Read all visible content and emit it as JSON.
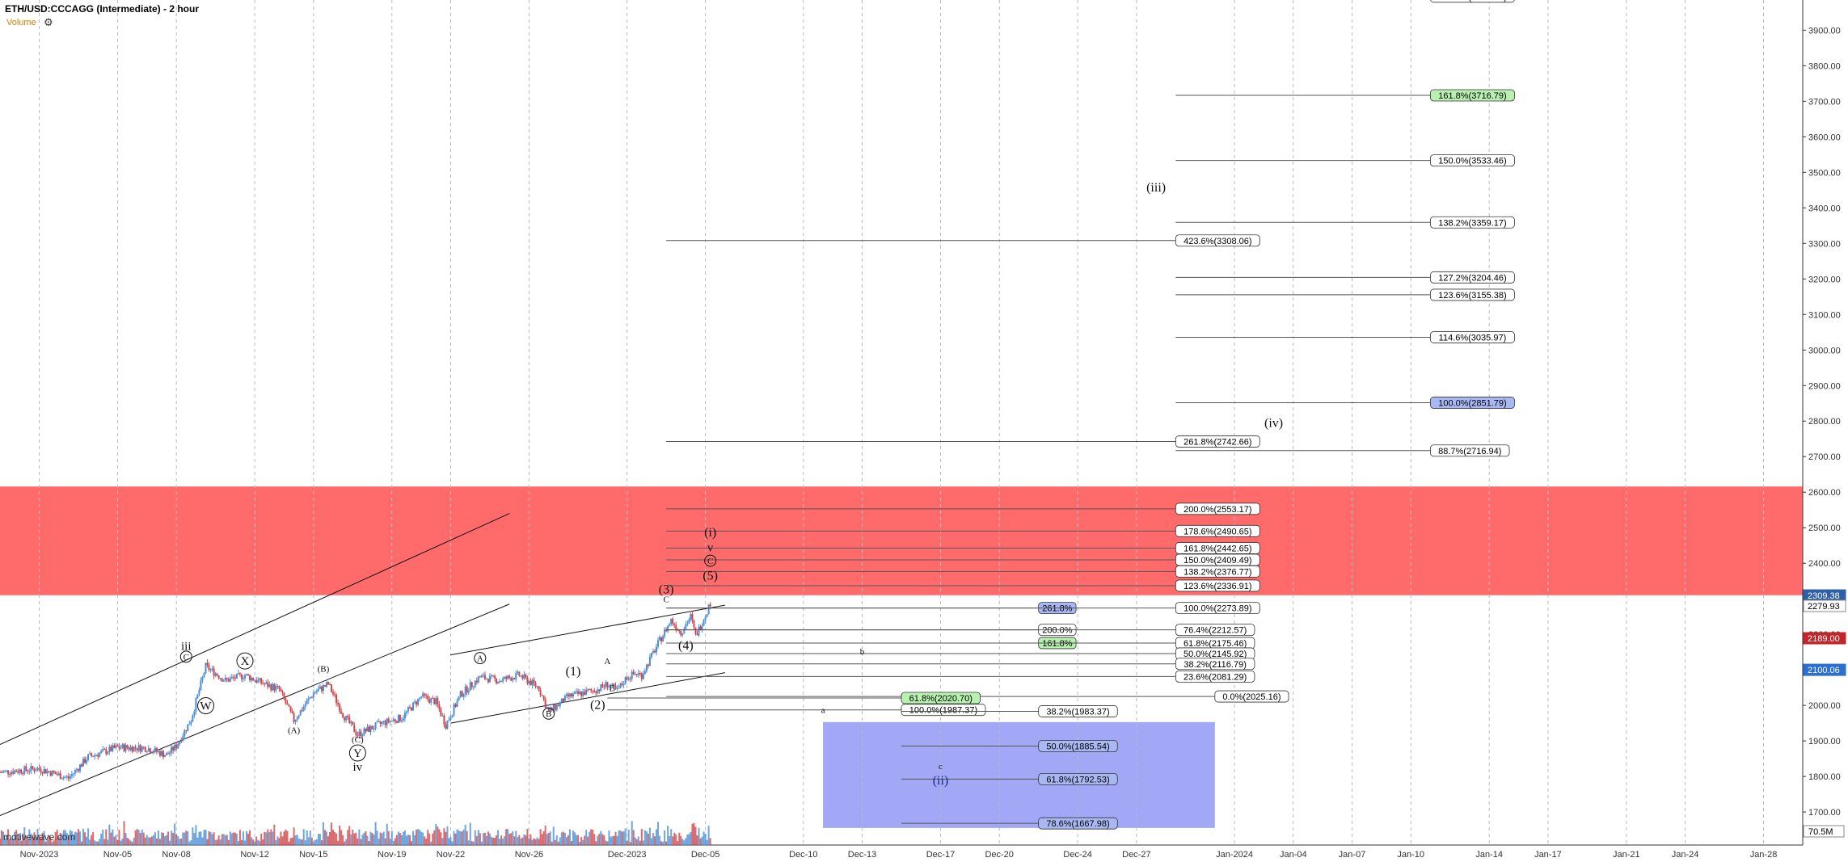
{
  "header": {
    "title": "ETH/USD:CCCAGG (Intermediate) - 2 hour",
    "volume_label": "Volume",
    "watermark": "motivewave.com"
  },
  "colors": {
    "resistance_zone": "#ff6b6b",
    "support_zone": "#9da3f5",
    "up_candle": "#4a8fd6",
    "down_candle": "#d0454a",
    "price_current": "#2f5fa8",
    "price_red": "#c0262b"
  },
  "chart_data": {
    "type": "candlestick",
    "symbol": "ETH/USD",
    "y_axis": {
      "ticks": [
        1700,
        1800,
        1900,
        2000,
        2100,
        2200,
        2300,
        2400,
        2500,
        2600,
        2700,
        2800,
        2900,
        3000,
        3100,
        3200,
        3300,
        3400,
        3500,
        3600,
        3700,
        3800,
        3900
      ],
      "ylim": [
        1607,
        3985
      ]
    },
    "x_axis": {
      "labels": [
        "Nov-2023",
        "Nov-05",
        "Nov-08",
        "Nov-12",
        "Nov-15",
        "Nov-19",
        "Nov-22",
        "Nov-26",
        "Dec-2023",
        "Dec-05",
        "Dec-10",
        "Dec-13",
        "Dec-17",
        "Dec-20",
        "Dec-24",
        "Dec-27",
        "Jan-2024",
        "Jan-04",
        "Jan-07",
        "Jan-10",
        "Jan-14",
        "Jan-17",
        "Jan-21",
        "Jan-24",
        "Jan-28"
      ],
      "start": "2023-10-30",
      "end": "2024-01-30"
    },
    "price_tags": [
      {
        "text": "2309.38",
        "value": 2309.38,
        "style": "current"
      },
      {
        "text": "2279.93",
        "value": 2279.93,
        "style": "plain"
      },
      {
        "text": "2189.00",
        "value": 2189.0,
        "style": "red"
      },
      {
        "text": "2100.06",
        "value": 2100.06,
        "style": "blue"
      }
    ],
    "volume_tag": "70.5M",
    "zones": [
      {
        "name": "resistance",
        "y_low": 2310,
        "y_high": 2616,
        "x_start": "2023-10-30",
        "x_end": "2024-01-30"
      },
      {
        "name": "support",
        "y_low": 1655,
        "y_high": 1953,
        "x_start": "2023-12-11",
        "x_end": "2023-12-31"
      }
    ],
    "fib_levels": [
      {
        "label": "176.0%(3994.53)",
        "value": 3994.53,
        "style": "plain",
        "line_start": "2023-12-29",
        "label_at": "2024-01-11"
      },
      {
        "label": "161.8%(3716.79)",
        "value": 3716.79,
        "style": "green",
        "line_start": "2023-12-29",
        "label_at": "2024-01-11"
      },
      {
        "label": "150.0%(3533.46)",
        "value": 3533.46,
        "style": "plain",
        "line_start": "2023-12-29",
        "label_at": "2024-01-11"
      },
      {
        "label": "138.2%(3359.17)",
        "value": 3359.17,
        "style": "plain",
        "line_start": "2023-12-29",
        "label_at": "2024-01-11"
      },
      {
        "label": "423.6%(3308.06)",
        "value": 3308.06,
        "style": "plain",
        "line_start": "2023-12-03",
        "label_at": "2023-12-29"
      },
      {
        "label": "127.2%(3204.46)",
        "value": 3204.46,
        "style": "plain",
        "line_start": "2023-12-29",
        "label_at": "2024-01-11"
      },
      {
        "label": "123.6%(3155.38)",
        "value": 3155.38,
        "style": "plain",
        "line_start": "2023-12-29",
        "label_at": "2024-01-11"
      },
      {
        "label": "114.6%(3035.97)",
        "value": 3035.97,
        "style": "plain",
        "line_start": "2023-12-29",
        "label_at": "2024-01-11"
      },
      {
        "label": "100.0%(2851.79)",
        "value": 2851.79,
        "style": "blue",
        "line_start": "2023-12-29",
        "label_at": "2024-01-11"
      },
      {
        "label": "261.8%(2742.66)",
        "value": 2742.66,
        "style": "plain",
        "line_start": "2023-12-03",
        "label_at": "2023-12-29"
      },
      {
        "label": "88.7%(2716.94)",
        "value": 2716.94,
        "style": "plain",
        "line_start": "2023-12-29",
        "label_at": "2024-01-11"
      },
      {
        "label": "200.0%(2553.17)",
        "value": 2553.17,
        "style": "plain",
        "line_start": "2023-12-03",
        "label_at": "2023-12-29"
      },
      {
        "label": "178.6%(2490.65)",
        "value": 2490.65,
        "style": "plain",
        "line_start": "2023-12-03",
        "label_at": "2023-12-29"
      },
      {
        "label": "161.8%(2442.65)",
        "value": 2442.65,
        "style": "plain",
        "line_start": "2023-12-03",
        "label_at": "2023-12-29"
      },
      {
        "label": "150.0%(2409.49)",
        "value": 2409.49,
        "style": "plain",
        "line_start": "2023-12-03",
        "label_at": "2023-12-29"
      },
      {
        "label": "138.2%(2376.77)",
        "value": 2376.77,
        "style": "plain",
        "line_start": "2023-12-03",
        "label_at": "2023-12-29"
      },
      {
        "label": "123.6%(2336.91)",
        "value": 2336.91,
        "style": "plain",
        "line_start": "2023-12-03",
        "label_at": "2023-12-29"
      },
      {
        "label": "261.8%",
        "value": 2273.89,
        "style": "blue",
        "line_start": "2023-12-03",
        "label_at": "2023-12-22"
      },
      {
        "label": "100.0%(2273.89)",
        "value": 2273.89,
        "style": "plain",
        "line_start": "2023-12-03",
        "label_at": "2023-12-29"
      },
      {
        "label": "200.0%",
        "value": 2212.57,
        "style": "plain",
        "line_start": "2023-12-03",
        "label_at": "2023-12-22"
      },
      {
        "label": "76.4%(2212.57)",
        "value": 2212.57,
        "style": "plain",
        "line_start": "2023-12-03",
        "label_at": "2023-12-29"
      },
      {
        "label": "161.8%",
        "value": 2175.46,
        "style": "green",
        "line_start": "2023-12-03",
        "label_at": "2023-12-22"
      },
      {
        "label": "61.8%(2175.46)",
        "value": 2175.46,
        "style": "plain",
        "line_start": "2023-12-03",
        "label_at": "2023-12-29"
      },
      {
        "label": "50.0%(2145.92)",
        "value": 2145.92,
        "style": "plain",
        "line_start": "2023-12-03",
        "label_at": "2023-12-29"
      },
      {
        "label": "38.2%(2116.79)",
        "value": 2116.79,
        "style": "plain",
        "line_start": "2023-12-03",
        "label_at": "2023-12-29"
      },
      {
        "label": "23.6%(2081.29)",
        "value": 2081.29,
        "style": "plain",
        "line_start": "2023-12-03",
        "label_at": "2023-12-29"
      },
      {
        "label": "0.0%(2025.16)",
        "value": 2025.16,
        "style": "plain",
        "line_start": "2023-12-03",
        "label_at": "2023-12-31"
      },
      {
        "label": "61.8%(2020.70)",
        "value": 2020.7,
        "style": "green",
        "line_start": "2023-11-30",
        "label_at": "2023-12-15"
      },
      {
        "label": "100.0%(1987.37)",
        "value": 1987.37,
        "style": "plain",
        "line_start": "2023-11-30",
        "label_at": "2023-12-15"
      },
      {
        "label": "38.2%(1983.37)",
        "value": 1983.37,
        "style": "plain",
        "line_start": "2023-12-15",
        "label_at": "2023-12-22"
      },
      {
        "label": "50.0%(1885.54)",
        "value": 1885.54,
        "style": "blue",
        "line_start": "2023-12-15",
        "label_at": "2023-12-22"
      },
      {
        "label": "61.8%(1792.53)",
        "value": 1792.53,
        "style": "blue",
        "line_start": "2023-12-15",
        "label_at": "2023-12-22"
      },
      {
        "label": "78.6%(1667.98)",
        "value": 1667.98,
        "style": "blue",
        "line_start": "2023-12-15",
        "label_at": "2023-12-22"
      }
    ],
    "wave_labels": [
      {
        "text": "iii",
        "x": "2023-11-08T12:00",
        "y": 2158,
        "size": "md",
        "circled": false
      },
      {
        "text": "C",
        "x": "2023-11-08T12:00",
        "y": 2128,
        "size": "sm",
        "circled": true
      },
      {
        "text": "W",
        "x": "2023-11-09T12:00",
        "y": 1990,
        "size": "md",
        "circled": true
      },
      {
        "text": "X",
        "x": "2023-11-11T12:00",
        "y": 2116,
        "size": "md",
        "circled": true
      },
      {
        "text": "(B)",
        "x": "2023-11-15T12:00",
        "y": 2095,
        "size": "sm",
        "circled": false
      },
      {
        "text": "(A)",
        "x": "2023-11-14T00:00",
        "y": 1922,
        "size": "sm",
        "circled": false
      },
      {
        "text": "(C)",
        "x": "2023-11-17T06:00",
        "y": 1896,
        "size": "sm",
        "circled": false
      },
      {
        "text": "Y",
        "x": "2023-11-17T06:00",
        "y": 1857,
        "size": "md",
        "circled": true
      },
      {
        "text": "iv",
        "x": "2023-11-17T06:00",
        "y": 1818,
        "size": "md",
        "circled": false
      },
      {
        "text": "A",
        "x": "2023-11-23T12:00",
        "y": 2124,
        "size": "sm",
        "circled": true
      },
      {
        "text": "(1)",
        "x": "2023-11-28T06:00",
        "y": 2087,
        "size": "lg",
        "circled": false
      },
      {
        "text": "B",
        "x": "2023-11-27T00:00",
        "y": 1968,
        "size": "sm",
        "circled": true
      },
      {
        "text": "A",
        "x": "2023-11-30T00:00",
        "y": 2116,
        "size": "sm",
        "circled": false
      },
      {
        "text": "B",
        "x": "2023-11-30T06:00",
        "y": 2040,
        "size": "sm",
        "circled": false
      },
      {
        "text": "(2)",
        "x": "2023-11-29T12:00",
        "y": 1992,
        "size": "lg",
        "circled": false
      },
      {
        "text": "(3)",
        "x": "2023-12-03T00:00",
        "y": 2318,
        "size": "lg",
        "circled": false
      },
      {
        "text": "C",
        "x": "2023-12-03T00:00",
        "y": 2290,
        "size": "sm",
        "circled": false
      },
      {
        "text": "(4)",
        "x": "2023-12-04T00:00",
        "y": 2160,
        "size": "lg",
        "circled": false
      },
      {
        "text": "(i)",
        "x": "2023-12-05T06:00",
        "y": 2478,
        "size": "lg",
        "circled": false
      },
      {
        "text": "v",
        "x": "2023-12-05T06:00",
        "y": 2436,
        "size": "md",
        "circled": false
      },
      {
        "text": "C",
        "x": "2023-12-05T06:00",
        "y": 2398,
        "size": "sm",
        "circled": true
      },
      {
        "text": "(5)",
        "x": "2023-12-05T06:00",
        "y": 2356,
        "size": "lg",
        "circled": false
      },
      {
        "text": "b",
        "x": "2023-12-13T00:00",
        "y": 2144,
        "size": "sm",
        "circled": false
      },
      {
        "text": "a",
        "x": "2023-12-11T00:00",
        "y": 1979,
        "size": "sm",
        "circled": false
      },
      {
        "text": "c",
        "x": "2023-12-17T00:00",
        "y": 1821,
        "size": "sm",
        "circled": false
      },
      {
        "text": "(ii)",
        "x": "2023-12-17T00:00",
        "y": 1780,
        "size": "lg",
        "circled": false,
        "color": "#1b2a8a"
      },
      {
        "text": "(iii)",
        "x": "2023-12-28T00:00",
        "y": 3448,
        "size": "lg",
        "circled": false
      },
      {
        "text": "(iv)",
        "x": "2024-01-03T00:00",
        "y": 2786,
        "size": "lg",
        "circled": false
      }
    ],
    "trendlines": [
      {
        "x1": "2023-10-30",
        "y1": 1890,
        "x2": "2023-11-25",
        "y2": 2540
      },
      {
        "x1": "2023-10-30",
        "y1": 1690,
        "x2": "2023-11-25",
        "y2": 2285
      },
      {
        "x1": "2023-11-22",
        "y1": 2142,
        "x2": "2023-12-06",
        "y2": 2282
      },
      {
        "x1": "2023-11-22",
        "y1": 1950,
        "x2": "2023-12-06",
        "y2": 2092
      }
    ],
    "price_path": [
      {
        "x": "2023-10-30T00:00",
        "y": 1812
      },
      {
        "x": "2023-11-01T00:00",
        "y": 1822
      },
      {
        "x": "2023-11-02T12:00",
        "y": 1795
      },
      {
        "x": "2023-11-03T12:00",
        "y": 1855
      },
      {
        "x": "2023-11-05T00:00",
        "y": 1882
      },
      {
        "x": "2023-11-06T12:00",
        "y": 1880
      },
      {
        "x": "2023-11-07T12:00",
        "y": 1860
      },
      {
        "x": "2023-11-08T00:00",
        "y": 1886
      },
      {
        "x": "2023-11-08T18:00",
        "y": 1960
      },
      {
        "x": "2023-11-09T12:00",
        "y": 2110
      },
      {
        "x": "2023-11-10T12:00",
        "y": 2070
      },
      {
        "x": "2023-11-11T12:00",
        "y": 2085
      },
      {
        "x": "2023-11-12T12:00",
        "y": 2060
      },
      {
        "x": "2023-11-13T06:00",
        "y": 2045
      },
      {
        "x": "2023-11-14T00:00",
        "y": 1958
      },
      {
        "x": "2023-11-15T00:00",
        "y": 2035
      },
      {
        "x": "2023-11-15T18:00",
        "y": 2060
      },
      {
        "x": "2023-11-16T12:00",
        "y": 1975
      },
      {
        "x": "2023-11-17T06:00",
        "y": 1918
      },
      {
        "x": "2023-11-18T12:00",
        "y": 1950
      },
      {
        "x": "2023-11-19T12:00",
        "y": 1965
      },
      {
        "x": "2023-11-20T12:00",
        "y": 2025
      },
      {
        "x": "2023-11-21T06:00",
        "y": 2010
      },
      {
        "x": "2023-11-21T18:00",
        "y": 1945
      },
      {
        "x": "2023-11-22T12:00",
        "y": 2030
      },
      {
        "x": "2023-11-23T12:00",
        "y": 2080
      },
      {
        "x": "2023-11-24T12:00",
        "y": 2070
      },
      {
        "x": "2023-11-25T12:00",
        "y": 2085
      },
      {
        "x": "2023-11-26T12:00",
        "y": 2050
      },
      {
        "x": "2023-11-27T00:00",
        "y": 1980
      },
      {
        "x": "2023-11-28T00:00",
        "y": 2025
      },
      {
        "x": "2023-11-28T18:00",
        "y": 2035
      },
      {
        "x": "2023-11-29T12:00",
        "y": 2045
      },
      {
        "x": "2023-11-30T00:00",
        "y": 2060
      },
      {
        "x": "2023-11-30T12:00",
        "y": 2040
      },
      {
        "x": "2023-12-01T00:00",
        "y": 2080
      },
      {
        "x": "2023-12-01T12:00",
        "y": 2090
      },
      {
        "x": "2023-12-01T18:00",
        "y": 2085
      },
      {
        "x": "2023-12-02T12:00",
        "y": 2165
      },
      {
        "x": "2023-12-03T06:00",
        "y": 2240
      },
      {
        "x": "2023-12-03T18:00",
        "y": 2205
      },
      {
        "x": "2023-12-04T06:00",
        "y": 2250
      },
      {
        "x": "2023-12-04T12:00",
        "y": 2195
      },
      {
        "x": "2023-12-05T00:00",
        "y": 2255
      },
      {
        "x": "2023-12-05T06:00",
        "y": 2290
      }
    ]
  }
}
